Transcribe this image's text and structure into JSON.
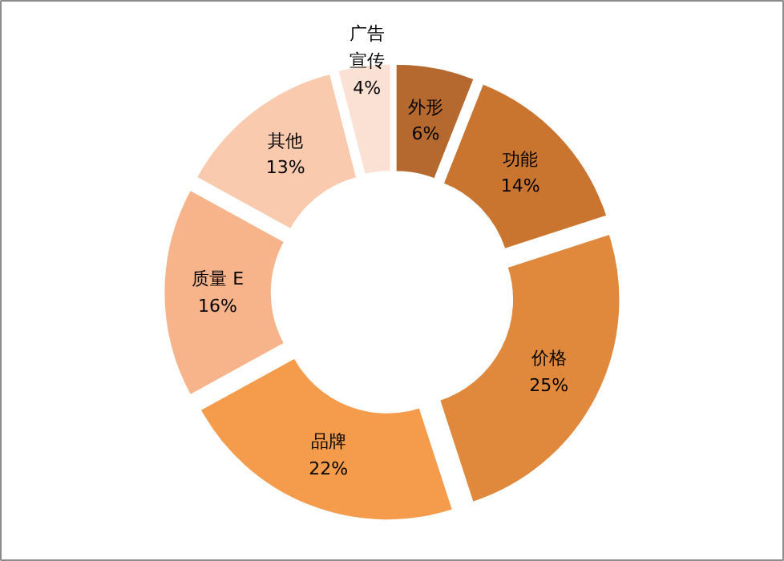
{
  "chart_data": {
    "type": "donut",
    "categories": [
      "外形",
      "功能",
      "价格",
      "品牌",
      "质量 E",
      "其他",
      "广告宣传"
    ],
    "values": [
      6,
      14,
      25,
      22,
      16,
      13,
      4
    ],
    "value_labels": [
      "6%",
      "14%",
      "25%",
      "22%",
      "16%",
      "13%",
      "4%"
    ],
    "colors": [
      "#b5692f",
      "#c97530",
      "#e0883b",
      "#f59c4c",
      "#f7b48a",
      "#f9caae",
      "#fbe1d3"
    ]
  }
}
